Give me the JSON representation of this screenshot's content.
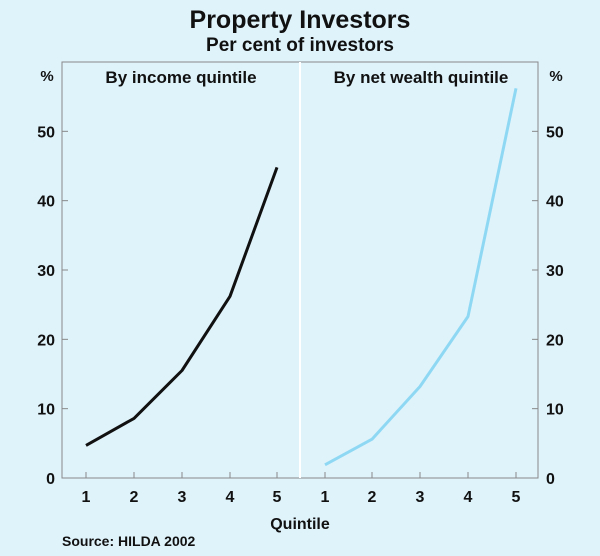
{
  "chart_data": {
    "type": "line",
    "title": "Property Investors",
    "subtitle": "Per cent of investors",
    "xlabel": "Quintile",
    "ylabel_left": "%",
    "ylabel_right": "%",
    "ylim": [
      0,
      60
    ],
    "yticks": [
      0,
      10,
      20,
      30,
      40,
      50
    ],
    "grid": false,
    "source": "Source: HILDA 2002",
    "panels": [
      {
        "title": "By income quintile",
        "x": [
          1,
          2,
          3,
          4,
          5
        ],
        "values": [
          4.7,
          8.6,
          15.5,
          26.2,
          44.8
        ],
        "color": "#111111"
      },
      {
        "title": "By net wealth quintile",
        "x": [
          1,
          2,
          3,
          4,
          5
        ],
        "values": [
          1.9,
          5.6,
          13.2,
          23.3,
          56.2
        ],
        "color": "#8fd8f4"
      }
    ]
  }
}
